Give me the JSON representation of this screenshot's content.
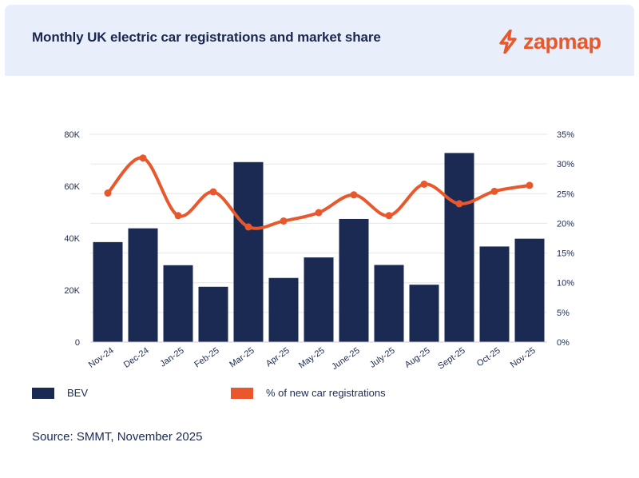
{
  "header": {
    "title": "Monthly UK electric car registrations and market share",
    "logo_text": "zapmap"
  },
  "colors": {
    "header_bg": "#e9effa",
    "bar": "#1a2a52",
    "line": "#e8582c",
    "grid": "#e6e6e6",
    "text": "#1a2a52"
  },
  "chart_data": {
    "type": "bar",
    "title": "Monthly UK electric car registrations and market share",
    "categories": [
      "Nov-24",
      "Dec-24",
      "Jan-25",
      "Feb-25",
      "Mar-25",
      "Apr-25",
      "May-25",
      "June-25",
      "July-25",
      "Aug-25",
      "Sept-25",
      "Oct-25",
      "Nov-25"
    ],
    "series": [
      {
        "name": "BEV",
        "type": "bar",
        "axis": "left",
        "values": [
          38500,
          43800,
          29600,
          21300,
          69300,
          24700,
          32600,
          47400,
          29700,
          22100,
          72800,
          36800,
          39800
        ]
      },
      {
        "name": "% of new car registrations",
        "type": "line",
        "axis": "right",
        "values": [
          25.1,
          31.0,
          21.3,
          25.3,
          19.4,
          20.4,
          21.8,
          24.8,
          21.3,
          26.6,
          23.3,
          25.4,
          26.4
        ]
      }
    ],
    "y_left": {
      "ticks": [
        "0",
        "20K",
        "40K",
        "60K",
        "80K"
      ],
      "min": 0,
      "max": 80000
    },
    "y_right": {
      "ticks": [
        "0%",
        "5%",
        "10%",
        "15%",
        "20%",
        "25%",
        "30%",
        "35%"
      ],
      "min": 0,
      "max": 35
    },
    "grid": true,
    "legend_position": "bottom"
  },
  "legend": {
    "bev_label": "BEV",
    "share_label": "% of new car registrations"
  },
  "source": "Source: SMMT, November 2025"
}
